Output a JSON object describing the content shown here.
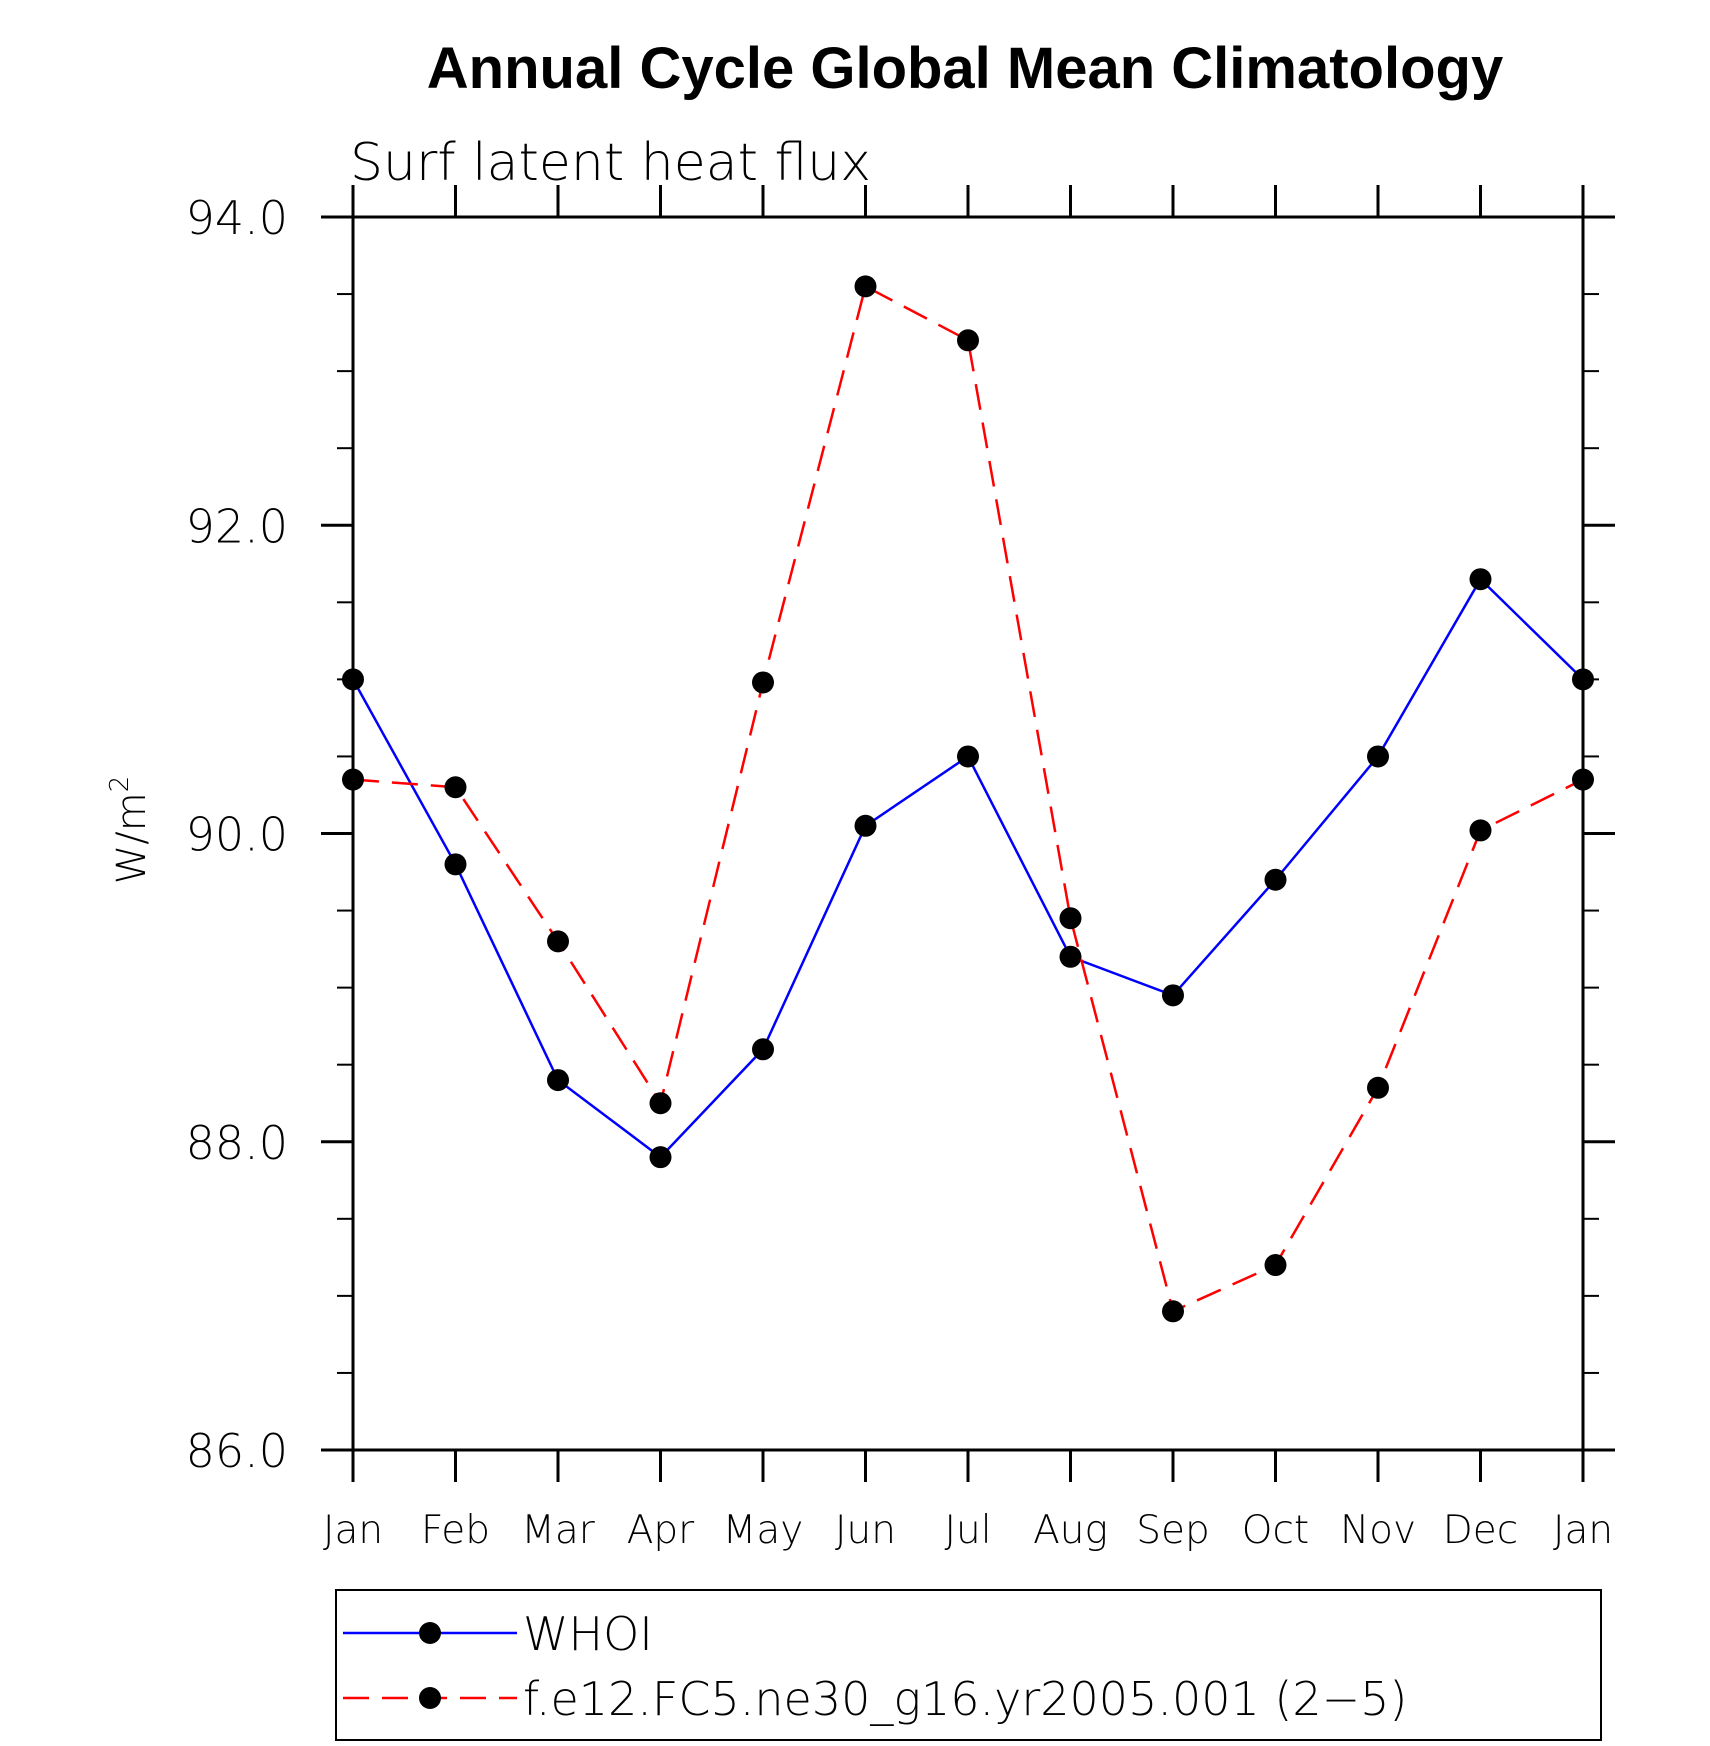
{
  "chart_data": {
    "type": "line",
    "title": "Annual Cycle Global Mean Climatology",
    "subtitle": "Surf latent heat flux",
    "ylabel": "W/m",
    "ylabel_superscript": "2",
    "xlabel": "",
    "ylim": [
      86.0,
      94.0
    ],
    "yticks": [
      "86.0",
      "88.0",
      "90.0",
      "92.0",
      "94.0"
    ],
    "ytick_values": [
      86,
      88,
      90,
      92,
      94
    ],
    "categories": [
      "Jan",
      "Feb",
      "Mar",
      "Apr",
      "May",
      "Jun",
      "Jul",
      "Aug",
      "Sep",
      "Oct",
      "Nov",
      "Dec",
      "Jan"
    ],
    "grid": false,
    "legend_position": "bottom",
    "series": [
      {
        "name": "WHOI",
        "color": "#0000ff",
        "line_style": "solid",
        "marker": "filled-circle",
        "values": [
          91.0,
          89.8,
          88.4,
          87.9,
          88.6,
          90.05,
          90.5,
          89.2,
          88.95,
          89.7,
          90.5,
          91.65,
          91.0
        ]
      },
      {
        "name": "f.e12.FC5.ne30_g16.yr2005.001 (2−5)",
        "color": "#ff0000",
        "line_style": "dashed",
        "marker": "filled-circle",
        "values": [
          90.35,
          90.3,
          89.3,
          88.25,
          90.98,
          93.55,
          93.2,
          89.45,
          86.9,
          87.2,
          88.35,
          90.02,
          90.35
        ]
      }
    ]
  }
}
